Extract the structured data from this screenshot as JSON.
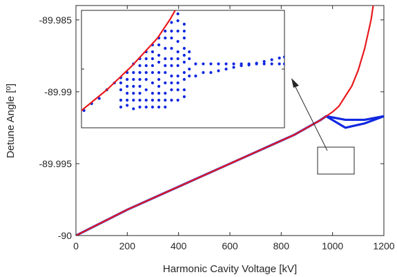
{
  "chart_data": [
    {
      "type": "line",
      "xlabel": "Harmonic Cavity Voltage [kV]",
      "ylabel": "Detune Angle [º]",
      "xlim": [
        0,
        1200
      ],
      "ylim": [
        -90,
        -89.984
      ],
      "xticks": [
        0,
        200,
        400,
        600,
        800,
        1000,
        1200
      ],
      "xtick_labels": [
        "0",
        "200",
        "400",
        "600",
        "800",
        "1000",
        "1200"
      ],
      "yticks": [
        -90,
        -89.995,
        -89.99,
        -89.985
      ],
      "ytick_labels": [
        "-90",
        "-89.995",
        "-89.99",
        "-89.985"
      ],
      "grid": false,
      "colors": {
        "red": "#e8191c",
        "blue": "#1128e0"
      },
      "series": [
        {
          "color": "#e8191c",
          "points": [
            [
              0,
              -90.0
            ],
            [
              100,
              -89.9991
            ],
            [
              200,
              -89.9982
            ],
            [
              300,
              -89.9974
            ],
            [
              400,
              -89.9966
            ],
            [
              500,
              -89.9958
            ],
            [
              600,
              -89.995
            ],
            [
              700,
              -89.9942
            ],
            [
              800,
              -89.9934
            ],
            [
              850,
              -89.993
            ],
            [
              900,
              -89.9925
            ],
            [
              950,
              -89.992
            ],
            [
              1000,
              -89.9914
            ],
            [
              1025,
              -89.991
            ],
            [
              1050,
              -89.9903
            ],
            [
              1075,
              -89.9896
            ],
            [
              1100,
              -89.9885
            ],
            [
              1125,
              -89.987
            ],
            [
              1150,
              -89.985
            ],
            [
              1175,
              -89.982
            ],
            [
              1200,
              -89.977
            ]
          ]
        },
        {
          "color": "#1128e0",
          "points": [
            [
              0,
              -90.0
            ],
            [
              100,
              -89.9991
            ],
            [
              200,
              -89.9982
            ],
            [
              300,
              -89.9974
            ],
            [
              400,
              -89.9966
            ],
            [
              500,
              -89.9958
            ],
            [
              600,
              -89.995
            ],
            [
              700,
              -89.9942
            ],
            [
              800,
              -89.9934
            ],
            [
              850,
              -89.993
            ],
            [
              900,
              -89.9925
            ],
            [
              950,
              -89.992
            ],
            [
              975,
              -89.9917
            ]
          ]
        },
        {
          "color": "#1128e0",
          "points": [
            [
              975,
              -89.9917
            ],
            [
              1050,
              -89.99195
            ],
            [
              1125,
              -89.99195
            ],
            [
              1200,
              -89.9917
            ]
          ]
        },
        {
          "color": "#1128e0",
          "points": [
            [
              975,
              -89.9917
            ],
            [
              1050,
              -89.9925
            ],
            [
              1125,
              -89.9922
            ],
            [
              1200,
              -89.9917
            ]
          ]
        }
      ]
    },
    {
      "type": "scatter",
      "xlim": [
        0,
        800
      ],
      "ylim": [
        -89.9917,
        -89.9883
      ],
      "yticks": [
        -89.99
      ],
      "ytick_labels": [
        "-89.99"
      ],
      "curve": {
        "color": "#e8191c",
        "points": [
          [
            0,
            -89.9912
          ],
          [
            50,
            -89.9909
          ],
          [
            100,
            -89.9906
          ],
          [
            150,
            -89.99025
          ],
          [
            200,
            -89.9899
          ],
          [
            250,
            -89.9895
          ],
          [
            300,
            -89.9891
          ],
          [
            350,
            -89.98855
          ],
          [
            400,
            -89.9879
          ],
          [
            450,
            -89.987
          ]
        ]
      },
      "points_color": "#1128e0",
      "dot_columns": [
        {
          "x": 10,
          "y": [
            -89.9912
          ]
        },
        {
          "x": 40,
          "y": [
            -89.991
          ]
        },
        {
          "x": 70,
          "y": [
            -89.99085
          ]
        },
        {
          "x": 100,
          "y": [
            -89.9906
          ]
        },
        {
          "x": 130,
          "y": [
            -89.9904
          ]
        },
        {
          "x": 155,
          "y": [
            -89.99025,
            -89.9904,
            -89.9906,
            -89.9909,
            -89.9911
          ]
        },
        {
          "x": 180,
          "y": [
            -89.9901,
            -89.9903,
            -89.9905,
            -89.9907,
            -89.9909,
            -89.99105
          ]
        },
        {
          "x": 205,
          "y": [
            -89.98985,
            -89.9901,
            -89.9903,
            -89.9905,
            -89.9907,
            -89.9909,
            -89.99115
          ]
        },
        {
          "x": 230,
          "y": [
            -89.9897,
            -89.9899,
            -89.9901,
            -89.9903,
            -89.9905,
            -89.9907,
            -89.9909,
            -89.9911
          ]
        },
        {
          "x": 255,
          "y": [
            -89.9895,
            -89.9897,
            -89.9899,
            -89.9901,
            -89.9903,
            -89.9906,
            -89.9909,
            -89.9911
          ]
        },
        {
          "x": 280,
          "y": [
            -89.9893,
            -89.9895,
            -89.9897,
            -89.9899,
            -89.9901,
            -89.9904,
            -89.9907,
            -89.9909,
            -89.9911
          ]
        },
        {
          "x": 305,
          "y": [
            -89.9891,
            -89.9893,
            -89.9896,
            -89.9898,
            -89.9901,
            -89.9903,
            -89.9905,
            -89.9907,
            -89.9909,
            -89.9911
          ]
        },
        {
          "x": 330,
          "y": [
            -89.9889,
            -89.9891,
            -89.9894,
            -89.9897,
            -89.9899,
            -89.9901,
            -89.9904,
            -89.9907,
            -89.9909,
            -89.9911
          ]
        },
        {
          "x": 355,
          "y": [
            -89.98865,
            -89.9889,
            -89.9891,
            -89.9894,
            -89.9897,
            -89.9899,
            -89.9902,
            -89.9904,
            -89.9906,
            -89.9909
          ]
        },
        {
          "x": 380,
          "y": [
            -89.9884,
            -89.9886,
            -89.9889,
            -89.9892,
            -89.9895,
            -89.9897,
            -89.9899,
            -89.9902,
            -89.9904,
            -89.9906,
            -89.9909
          ]
        },
        {
          "x": 405,
          "y": [
            -89.9887,
            -89.9889,
            -89.9891,
            -89.9894,
            -89.9896,
            -89.9898,
            -89.9901,
            -89.9903,
            -89.9906,
            -89.9908
          ]
        },
        {
          "x": 425,
          "y": [
            -89.9895,
            -89.9897,
            -89.99,
            -89.9902
          ]
        },
        {
          "x": 450,
          "y": [
            -89.98985,
            -89.9902
          ]
        },
        {
          "x": 480,
          "y": [
            -89.98985,
            -89.9901
          ]
        },
        {
          "x": 510,
          "y": [
            -89.98985,
            -89.9901
          ]
        },
        {
          "x": 540,
          "y": [
            -89.98985,
            -89.99005
          ]
        },
        {
          "x": 570,
          "y": [
            -89.98985,
            -89.99
          ]
        },
        {
          "x": 600,
          "y": [
            -89.98985,
            -89.98995
          ]
        },
        {
          "x": 630,
          "y": [
            -89.98985,
            -89.9899
          ]
        },
        {
          "x": 660,
          "y": [
            -89.98985,
            -89.98988
          ]
        },
        {
          "x": 690,
          "y": [
            -89.98985,
            -89.98983
          ]
        },
        {
          "x": 720,
          "y": [
            -89.98985,
            -89.98978
          ]
        },
        {
          "x": 750,
          "y": [
            -89.98985,
            -89.98973
          ]
        },
        {
          "x": 780,
          "y": [
            -89.98985,
            -89.98968
          ]
        },
        {
          "x": 800,
          "y": [
            -89.98985,
            -89.98965
          ]
        }
      ]
    }
  ]
}
